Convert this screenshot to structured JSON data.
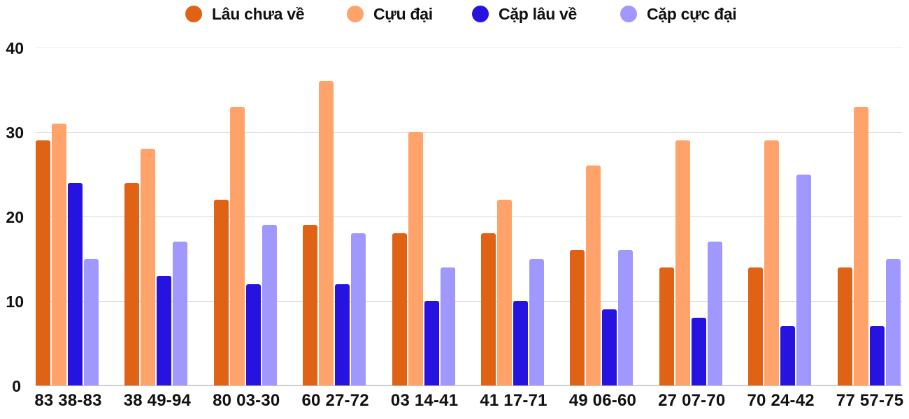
{
  "chart_data": {
    "type": "bar",
    "title": "",
    "xlabel": "",
    "ylabel": "",
    "ylim": [
      0,
      40
    ],
    "yticks": [
      0,
      10,
      20,
      30,
      40
    ],
    "grid": true,
    "legend_position": "top",
    "categories": [
      "83 38-83",
      "38 49-94",
      "80 03-30",
      "60 27-72",
      "03 14-41",
      "41 17-71",
      "49 06-60",
      "27 07-70",
      "70 24-42",
      "77 57-75"
    ],
    "series": [
      {
        "name": "Lâu chưa về",
        "color": "#E06215",
        "values": [
          29,
          24,
          22,
          19,
          18,
          18,
          16,
          14,
          14,
          14
        ]
      },
      {
        "name": "Cựu đại",
        "color": "#FFA36B",
        "values": [
          31,
          28,
          33,
          36,
          30,
          22,
          26,
          29,
          29,
          33
        ]
      },
      {
        "name": "Cặp lâu về",
        "color": "#2613E0",
        "values": [
          24,
          13,
          12,
          12,
          10,
          10,
          9,
          8,
          7,
          7
        ]
      },
      {
        "name": "Cặp cực đại",
        "color": "#A097FF",
        "values": [
          15,
          17,
          19,
          18,
          14,
          15,
          16,
          17,
          25,
          15
        ]
      }
    ]
  },
  "legend": {
    "items": [
      {
        "label": "Lâu chưa về",
        "color": "#E06215"
      },
      {
        "label": "Cựu đại",
        "color": "#FFA36B"
      },
      {
        "label": "Cặp lâu về",
        "color": "#2613E0"
      },
      {
        "label": "Cặp cực đại",
        "color": "#A097FF"
      }
    ]
  },
  "axis": {
    "y_labels": [
      "40",
      "30",
      "20",
      "10",
      "0"
    ]
  }
}
